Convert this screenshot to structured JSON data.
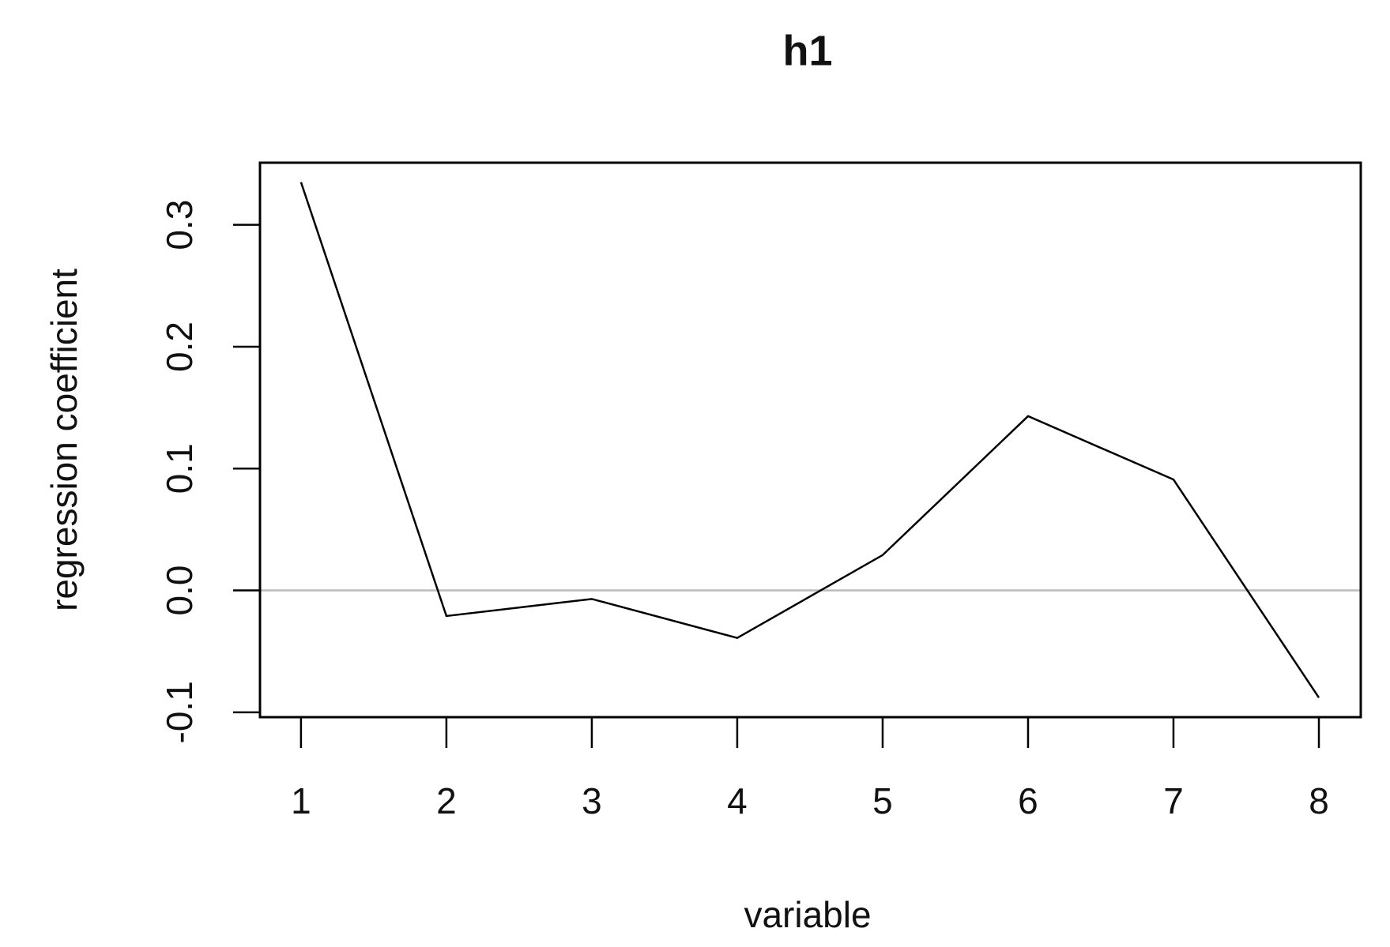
{
  "chart_data": {
    "type": "line",
    "title": "h1",
    "x_label": "variable",
    "y_label": "regression coefficient",
    "x": [
      1,
      2,
      3,
      4,
      5,
      6,
      7,
      8
    ],
    "series": [
      {
        "color": "#000000",
        "values": [
          0.335,
          -0.021,
          -0.007,
          -0.039,
          0.029,
          0.143,
          0.091,
          -0.088
        ]
      }
    ],
    "xlim": [
      0.718,
      8.288
    ],
    "ylim": [
      -0.104,
      0.351
    ],
    "xticks": [
      1,
      2,
      3,
      4,
      5,
      6,
      7,
      8
    ],
    "yticks": [
      -0.1,
      {
        "value": 0,
        "label": "0.0"
      },
      0.1,
      0.2,
      0.3
    ],
    "reference_line": {
      "value": 0,
      "color": "#bbbbbb"
    }
  }
}
